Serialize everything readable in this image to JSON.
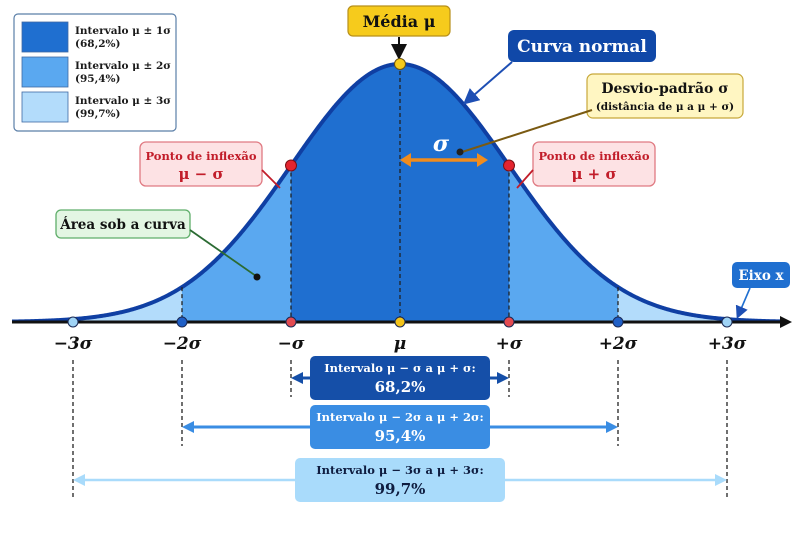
{
  "mean_label": "Média μ",
  "curve_label": "Curva normal",
  "sigma_callout": {
    "title": "Desvio-padrão σ",
    "subtitle": "(distância de μ a μ + σ)"
  },
  "sigma_symbol": "σ",
  "inflection_left": {
    "title": "Ponto de inflexão",
    "symbol": "μ − σ"
  },
  "inflection_right": {
    "title": "Ponto de inflexão",
    "symbol": "μ + σ"
  },
  "area_label": "Área sob a curva",
  "axis_label": "Eixo x",
  "legend": [
    {
      "line1": "Intervalo μ ± 1σ",
      "line2": "(68,2%)",
      "color": "#1f6fd0"
    },
    {
      "line1": "Intervalo μ ± 2σ",
      "line2": "(95,4%)",
      "color": "#5aa8f0"
    },
    {
      "line1": "Intervalo μ ± 3σ",
      "line2": "(99,7%)",
      "color": "#b3dcfb"
    }
  ],
  "axis_ticks": [
    {
      "label": "−3σ",
      "k": -3,
      "color": "#9fd3f5"
    },
    {
      "label": "−2σ",
      "k": -2,
      "color": "#1f5fc6"
    },
    {
      "label": "−σ",
      "k": -1,
      "color": "#e34a50"
    },
    {
      "label": "μ",
      "k": 0,
      "color": "#f3c318"
    },
    {
      "label": "+σ",
      "k": 1,
      "color": "#e34a50"
    },
    {
      "label": "+2σ",
      "k": 2,
      "color": "#1f5fc6"
    },
    {
      "label": "+3σ",
      "k": 3,
      "color": "#9fd3f5"
    }
  ],
  "intervals": [
    {
      "title": "Intervalo μ − σ a μ + σ:",
      "value": "68,2%",
      "k": 1,
      "color": "#154fa8",
      "text_color": "#ffffff"
    },
    {
      "title": "Intervalo μ − 2σ a μ + 2σ:",
      "value": "95,4%",
      "k": 2,
      "color": "#3a8de3",
      "text_color": "#ffffff"
    },
    {
      "title": "Intervalo μ − 3σ a μ + 3σ:",
      "value": "99,7%",
      "k": 3,
      "color": "#a9dbfb",
      "text_color": "#0f1d40"
    }
  ],
  "colors": {
    "band1": "#1f6fd0",
    "band2": "#5aa8f0",
    "band3": "#b3dcfb",
    "curve": "#0f3fa3",
    "mean_box": "#f6cb1c",
    "red_box_fill": "#fde2e4",
    "red_box_stroke": "#e07a82",
    "yellow_box_fill": "#fff6c2",
    "green_box_fill": "#e3f6e3",
    "green_box_stroke": "#5fae6a",
    "sigma_arrow": "#f08c1e"
  }
}
